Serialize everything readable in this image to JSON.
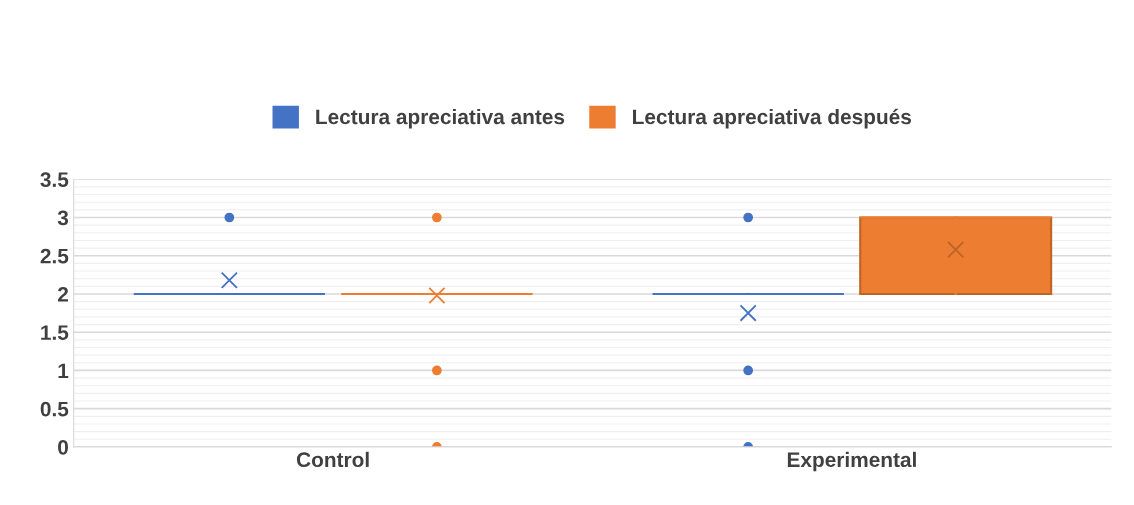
{
  "chart_data": {
    "type": "box",
    "categories": [
      "Control",
      "Experimental"
    ],
    "ylim": [
      0,
      3.5
    ],
    "yticks": [
      0,
      0.5,
      1,
      1.5,
      2,
      2.5,
      3,
      3.5
    ],
    "grid": "y",
    "legend": "top",
    "series": [
      {
        "name": "Lectura apreciativa antes",
        "color": "#4472c4",
        "boxes": [
          {
            "low": 2,
            "q1": 2,
            "median": 2,
            "q3": 2,
            "high": 2,
            "mean": 2.18,
            "outliers": [
              3
            ]
          },
          {
            "low": 2,
            "q1": 2,
            "median": 2,
            "q3": 2,
            "high": 2,
            "mean": 1.75,
            "outliers": [
              3,
              1,
              0
            ]
          }
        ]
      },
      {
        "name": "Lectura apreciativa después",
        "color": "#ed7d31",
        "boxes": [
          {
            "low": 2,
            "q1": 2,
            "median": 2,
            "q3": 2,
            "high": 2,
            "mean": 1.98,
            "outliers": [
              3,
              1,
              0
            ]
          },
          {
            "low": 2,
            "q1": 2,
            "median": 3,
            "q3": 3,
            "high": 3,
            "mean": 2.58
          }
        ]
      }
    ]
  }
}
